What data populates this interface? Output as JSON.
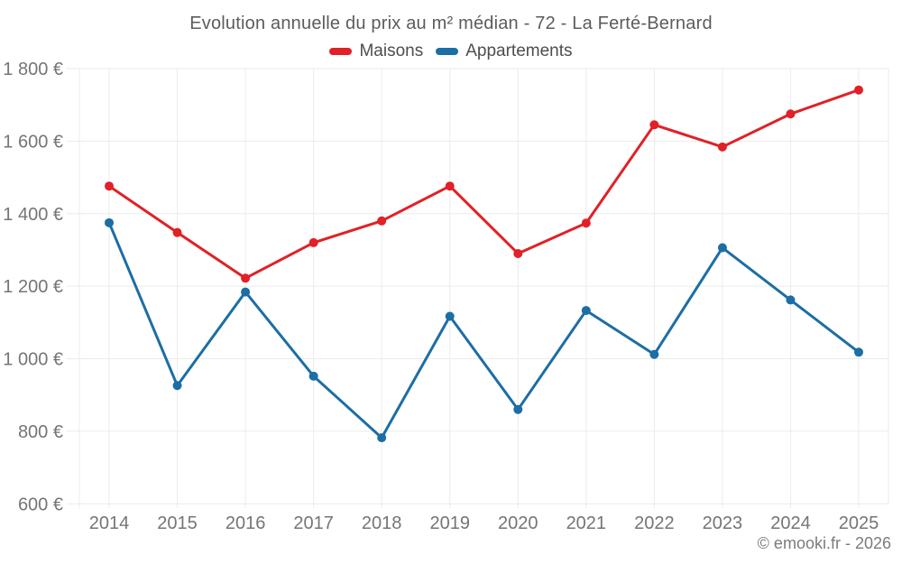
{
  "chart_data": {
    "type": "line",
    "title": "Evolution annuelle du prix au m² médian - 72 - La Ferté-Bernard",
    "x": [
      2014,
      2015,
      2016,
      2017,
      2018,
      2019,
      2020,
      2021,
      2022,
      2023,
      2024,
      2025
    ],
    "series": [
      {
        "name": "Maisons",
        "color": "#e02127",
        "values": [
          1476,
          1348,
          1222,
          1320,
          1380,
          1476,
          1290,
          1374,
          1645,
          1584,
          1675,
          1741
        ]
      },
      {
        "name": "Appartements",
        "color": "#1c6ea4",
        "values": [
          1375,
          926,
          1184,
          952,
          782,
          1117,
          860,
          1133,
          1012,
          1306,
          1162,
          1018
        ]
      }
    ],
    "ylim": [
      600,
      1800
    ],
    "yticks": [
      600,
      800,
      1000,
      1200,
      1400,
      1600,
      1800
    ],
    "ytick_labels": [
      "600 €",
      "800 €",
      "1 000 €",
      "1 200 €",
      "1 400 €",
      "1 600 €",
      "1 800 €"
    ],
    "grid": true,
    "grid_color": "#ebebeb",
    "legend_position": "top",
    "footer": "© emooki.fr - 2026"
  }
}
